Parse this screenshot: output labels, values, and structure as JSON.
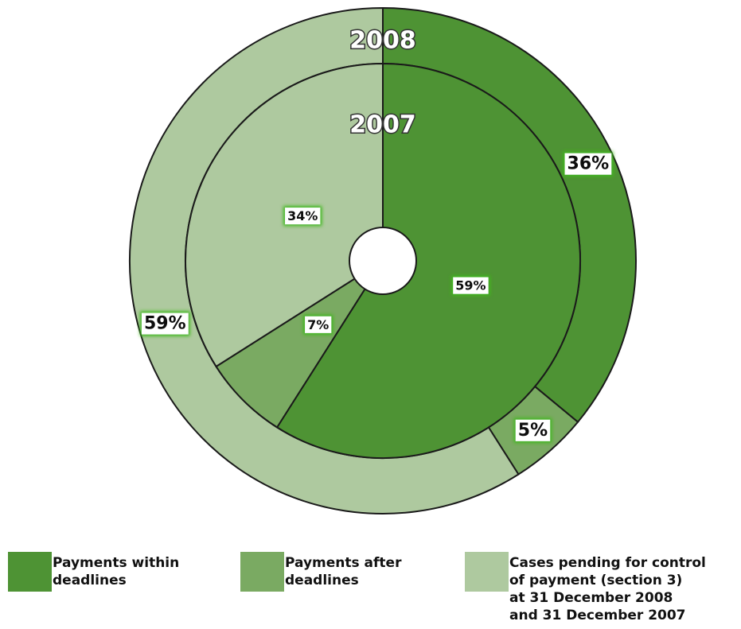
{
  "chart_data": {
    "type": "donut",
    "categories": [
      "Payments within\ndeadlines",
      "Payments after\ndeadlines",
      "Cases pending for control\nof payment (section 3)\nat 31 December 2008\nand 31 December 2007"
    ],
    "colors": [
      "#4e9334",
      "#7aaa62",
      "#aec99f"
    ],
    "series": [
      {
        "name": "2008",
        "values": [
          36,
          5,
          59
        ],
        "value_labels": [
          "36%",
          "5%",
          "59%"
        ]
      },
      {
        "name": "2007",
        "values": [
          59,
          7,
          34
        ],
        "value_labels": [
          "59%",
          "7%",
          "34%"
        ]
      }
    ]
  }
}
